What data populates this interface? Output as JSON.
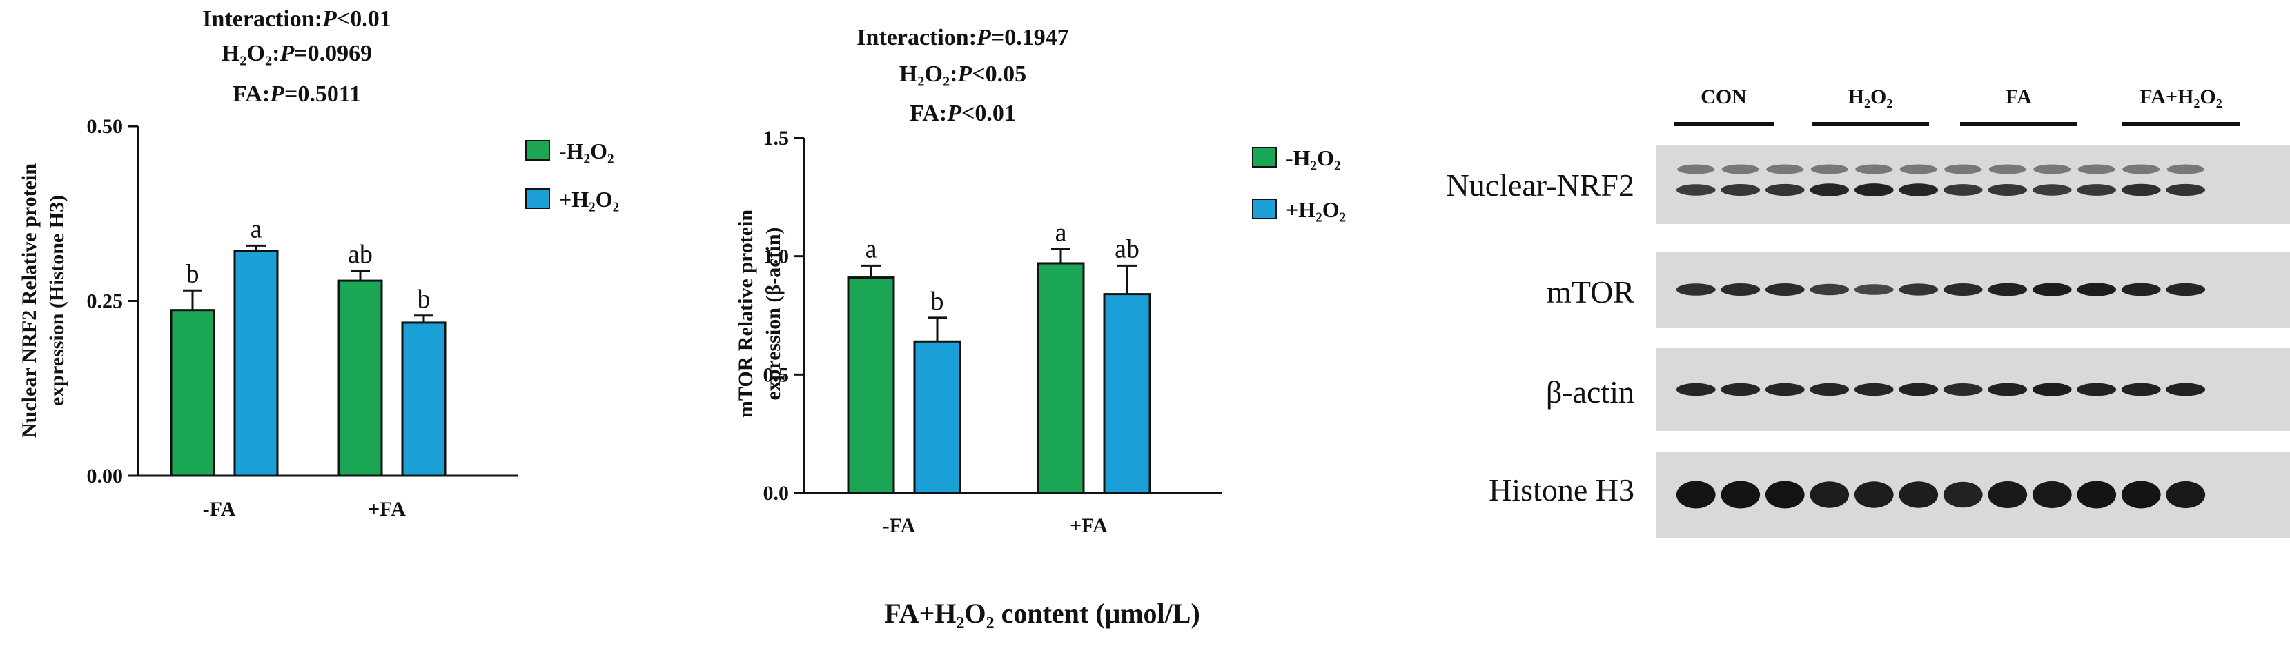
{
  "figure": {
    "x_axis_title": "FA+H₂O₂ content (μmol/L)"
  },
  "colors": {
    "minus_h2o2": "#1aa655",
    "plus_h2o2": "#1a9fd6",
    "axis": "#111111"
  },
  "chart_data": [
    {
      "type": "bar",
      "stats_lines": [
        {
          "label": "Interaction:",
          "p": "P",
          "rest": "<0.01"
        },
        {
          "label": "H₂O₂:",
          "p": "P",
          "rest": "=0.0969"
        },
        {
          "label": "FA:",
          "p": "P",
          "rest": "=0.5011"
        }
      ],
      "ylabel_line1": "Nuclear NRF2 Relative protein",
      "ylabel_line2": "expression (Histone H3)",
      "ylim": [
        0,
        0.5
      ],
      "yticks": [
        0,
        0.25,
        0.5
      ],
      "ytick_labels": [
        "0.00",
        "0.25",
        "0.50"
      ],
      "categories": [
        "-FA",
        "+FA"
      ],
      "series": [
        {
          "name": "-H₂O₂",
          "color_key": "minus_h2o2",
          "values": [
            0.237,
            0.279
          ],
          "errors": [
            0.028,
            0.014
          ],
          "letters": [
            "b",
            "ab"
          ]
        },
        {
          "name": "+H₂O₂",
          "color_key": "plus_h2o2",
          "values": [
            0.322,
            0.219
          ],
          "errors": [
            0.007,
            0.01
          ],
          "letters": [
            "a",
            "b"
          ]
        }
      ],
      "grid": false,
      "legend": "right"
    },
    {
      "type": "bar",
      "stats_lines": [
        {
          "label": "Interaction:",
          "p": "P",
          "rest": "=0.1947"
        },
        {
          "label": "H₂O₂:",
          "p": "P",
          "rest": "<0.05"
        },
        {
          "label": "FA:",
          "p": "P",
          "rest": "<0.01"
        }
      ],
      "ylabel_line1": "mTOR Relative protein",
      "ylabel_line2": "expression (β-actin)",
      "ylim": [
        0,
        1.5
      ],
      "yticks": [
        0,
        0.5,
        1.0,
        1.5
      ],
      "ytick_labels": [
        "0.0",
        "0.5",
        "1.0",
        "1.5"
      ],
      "categories": [
        "-FA",
        "+FA"
      ],
      "series": [
        {
          "name": "-H₂O₂",
          "color_key": "minus_h2o2",
          "values": [
            0.91,
            0.97
          ],
          "errors": [
            0.05,
            0.06
          ],
          "letters": [
            "a",
            "a"
          ]
        },
        {
          "name": "+H₂O₂",
          "color_key": "plus_h2o2",
          "values": [
            0.64,
            0.84
          ],
          "errors": [
            0.1,
            0.12
          ],
          "letters": [
            "b",
            "ab"
          ]
        }
      ],
      "grid": false,
      "legend": "right"
    }
  ],
  "blot": {
    "groups": [
      "CON",
      "H₂O₂",
      "FA",
      "FA+H₂O₂"
    ],
    "rows": [
      {
        "label": "Nuclear-NRF2",
        "intensities": [
          0.55,
          0.62,
          0.65,
          0.8,
          0.85,
          0.8,
          0.6,
          0.62,
          0.55,
          0.6,
          0.7,
          0.65
        ]
      },
      {
        "label": "mTOR",
        "intensities": [
          0.7,
          0.75,
          0.75,
          0.55,
          0.45,
          0.65,
          0.75,
          0.85,
          0.9,
          0.9,
          0.85,
          0.8
        ]
      },
      {
        "label": "β-actin",
        "intensities": [
          0.8,
          0.8,
          0.8,
          0.8,
          0.8,
          0.85,
          0.75,
          0.85,
          0.9,
          0.85,
          0.85,
          0.85
        ]
      },
      {
        "label": "Histone H3",
        "intensities": [
          1,
          1,
          1,
          0.9,
          0.9,
          0.9,
          0.85,
          0.95,
          0.95,
          1,
          1,
          0.95
        ]
      }
    ]
  }
}
